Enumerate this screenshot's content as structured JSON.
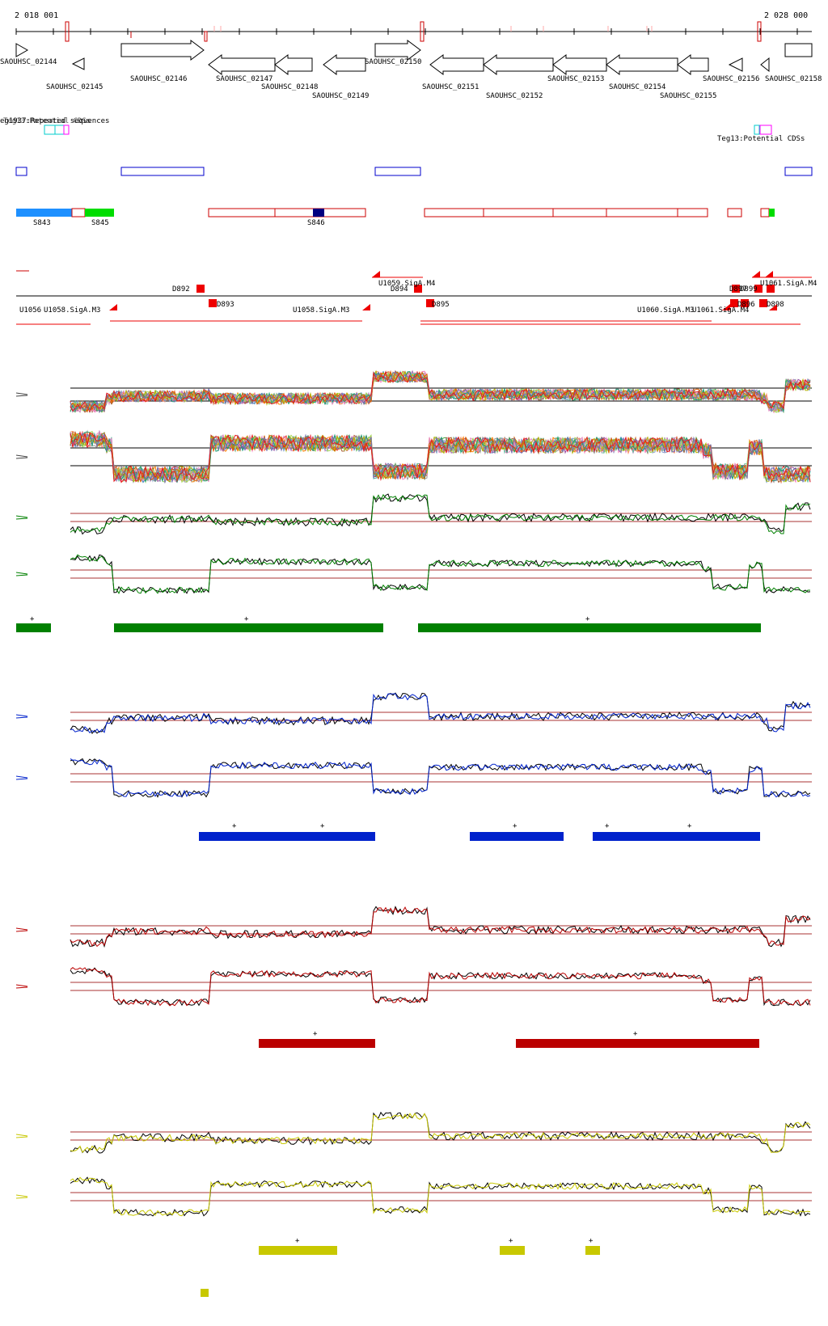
{
  "coords": {
    "start": "2 018 001",
    "end": "2 028 000"
  },
  "genes": [
    {
      "label": "SAOUHSC_02144",
      "strand": "+"
    },
    {
      "label": "SAOUHSC_02145",
      "strand": "-"
    },
    {
      "label": "SAOUHSC_02146",
      "strand": "+"
    },
    {
      "label": "SAOUHSC_02147",
      "strand": "-"
    },
    {
      "label": "SAOUHSC_02148",
      "strand": "-"
    },
    {
      "label": "SAOUHSC_02149",
      "strand": "-"
    },
    {
      "label": "SAOUHSC_02150",
      "strand": "+"
    },
    {
      "label": "SAOUHSC_02151",
      "strand": "-"
    },
    {
      "label": "SAOUHSC_02152",
      "strand": "-"
    },
    {
      "label": "SAOUHSC_02153",
      "strand": "-"
    },
    {
      "label": "SAOUHSC_02154",
      "strand": "-"
    },
    {
      "label": "SAOUHSC_02155",
      "strand": "-"
    },
    {
      "label": "SAOUHSC_02156",
      "strand": "-"
    },
    {
      "label": "SAOUHSC_02158",
      "strand": "+"
    }
  ],
  "annotation_tracks": {
    "repeated": "eg1937:Repeated sequences",
    "repeated_overlay": "Teg13:Potential CDSs",
    "potential_cds": "Teg13:Potential CDSs"
  },
  "segments": [
    "S843",
    "S845",
    "S846"
  ],
  "regulatory": {
    "top_labels": [
      "D892",
      "U1059.SigA.M4",
      "D894",
      "U1061.SigA.M4",
      "D897",
      "D899"
    ],
    "bottom_labels": [
      "U1056",
      "U1058.SigA.M3",
      "D893",
      "U1058.SigA.M3",
      "D895",
      "U1060.SigA.M3",
      "U1061.SigA.M4",
      "D896",
      "D898"
    ]
  },
  "condition_colors": [
    "#008000",
    "#0022cc",
    "#bb0000",
    "#c8c800"
  ],
  "condition_plus": [
    "+",
    "+",
    "+",
    "+",
    "+",
    "+",
    "+",
    "+",
    "+",
    "+",
    "+",
    "+",
    "+",
    "+",
    "+"
  ]
}
